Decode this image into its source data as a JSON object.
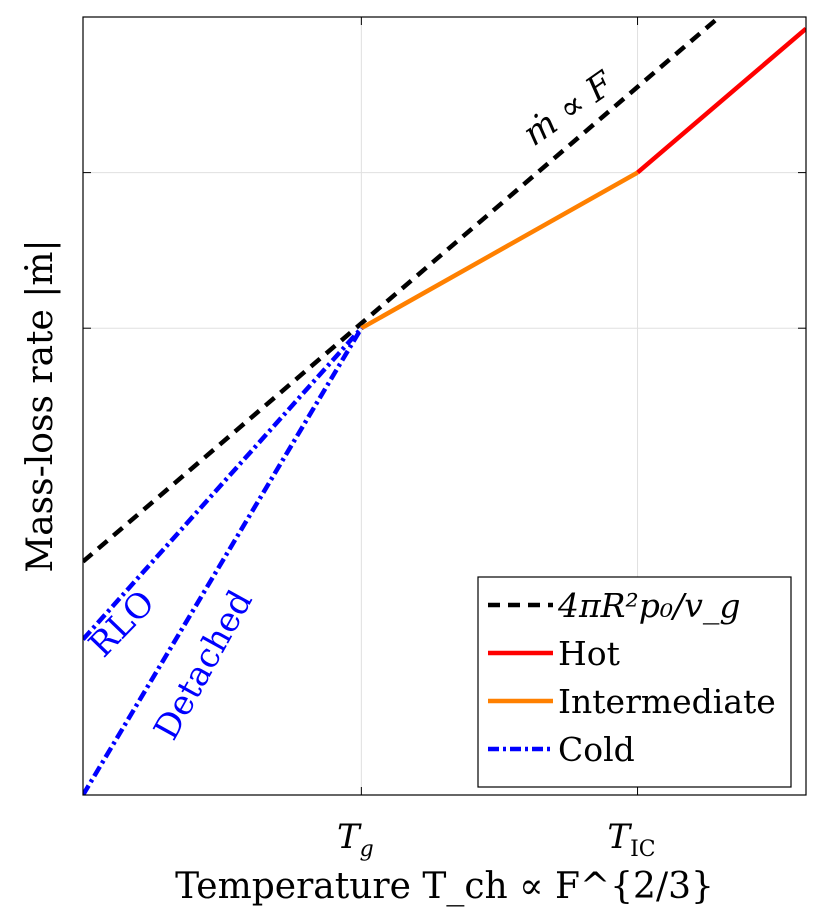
{
  "chart_data": {
    "type": "line",
    "title": "",
    "xlabel": "Temperature T_ch ∝ F^{2/3}",
    "ylabel": "Mass-loss rate |ṁ|",
    "xlim": [
      0,
      1
    ],
    "ylim": [
      0,
      1
    ],
    "grid": true,
    "xticks": [
      {
        "value": 0.385,
        "label": "T",
        "sub": "g"
      },
      {
        "value": 0.767,
        "label": "T",
        "sub": "IC"
      }
    ],
    "yticks": [
      0.6,
      0.8
    ],
    "series": [
      {
        "name": "4πR²p₀/v_g",
        "key": "dashed",
        "color": "#000000",
        "style": "dashed",
        "x": [
          0,
          0.88
        ],
        "y": [
          0.3,
          1.0
        ]
      },
      {
        "name": "Hot",
        "key": "hot",
        "color": "#ff0000",
        "style": "solid",
        "x": [
          0.767,
          1.0
        ],
        "y": [
          0.8,
          0.985
        ]
      },
      {
        "name": "Intermediate",
        "key": "intermediate",
        "color": "#ff8000",
        "style": "solid",
        "x": [
          0.385,
          0.767
        ],
        "y": [
          0.6,
          0.8
        ]
      },
      {
        "name": "Cold",
        "key": "cold-rlo",
        "color": "#0000ff",
        "style": "dashdot",
        "x": [
          0,
          0.385
        ],
        "y": [
          0.2,
          0.6
        ]
      },
      {
        "name": "Cold",
        "key": "cold-detached",
        "color": "#0000ff",
        "style": "dashdot",
        "x": [
          0,
          0.385
        ],
        "y": [
          0.0,
          0.6
        ]
      }
    ],
    "legend": {
      "position": "bottom-right",
      "entries": [
        {
          "label": "4πR²p₀/v_g",
          "color": "#000000",
          "style": "dashed"
        },
        {
          "label": "Hot",
          "color": "#ff0000",
          "style": "solid"
        },
        {
          "label": "Intermediate",
          "color": "#ff8000",
          "style": "solid"
        },
        {
          "label": "Cold",
          "color": "#0000ff",
          "style": "dashdot"
        }
      ]
    },
    "annotations": [
      {
        "text": "ṁ ∝ F",
        "color": "#000000",
        "x": 0.68,
        "y": 0.87
      },
      {
        "text": "RLO",
        "color": "#0000ff",
        "x": 0.065,
        "y": 0.21
      },
      {
        "text": "Detached",
        "color": "#0000ff",
        "x": 0.18,
        "y": 0.16
      }
    ]
  }
}
